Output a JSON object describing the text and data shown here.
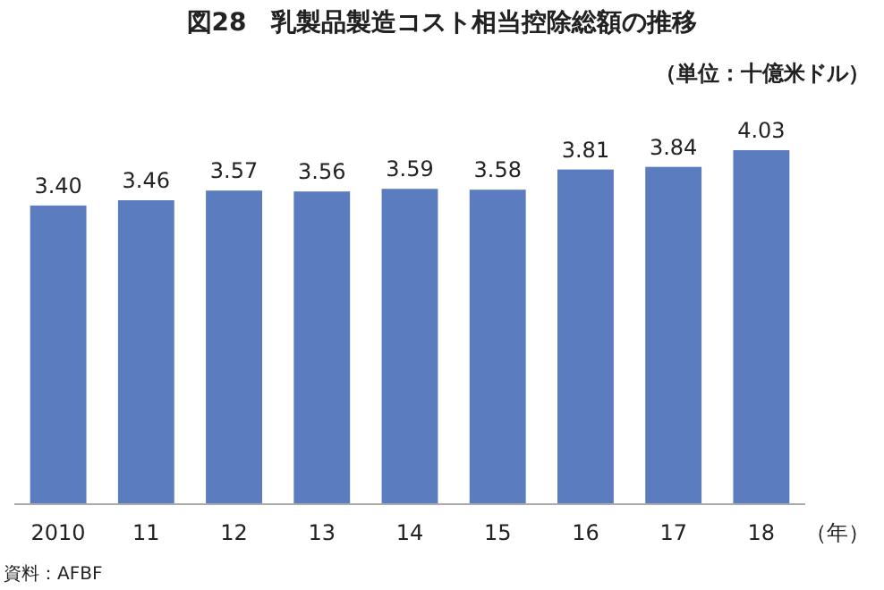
{
  "chart_data": {
    "type": "bar",
    "title": "図28　乳製品製造コスト相当控除総額の推移",
    "subtitle": "（単位：十億米ドル）",
    "xlabel": "（年）",
    "categories": [
      "2010",
      "11",
      "12",
      "13",
      "14",
      "15",
      "16",
      "17",
      "18"
    ],
    "values": [
      3.4,
      3.46,
      3.57,
      3.56,
      3.59,
      3.58,
      3.81,
      3.84,
      4.03
    ],
    "value_labels": [
      "3.40",
      "3.46",
      "3.57",
      "3.56",
      "3.59",
      "3.58",
      "3.81",
      "3.84",
      "4.03"
    ],
    "color": "#5b7cbf",
    "annotations": [
      "資料：AFBF"
    ]
  }
}
